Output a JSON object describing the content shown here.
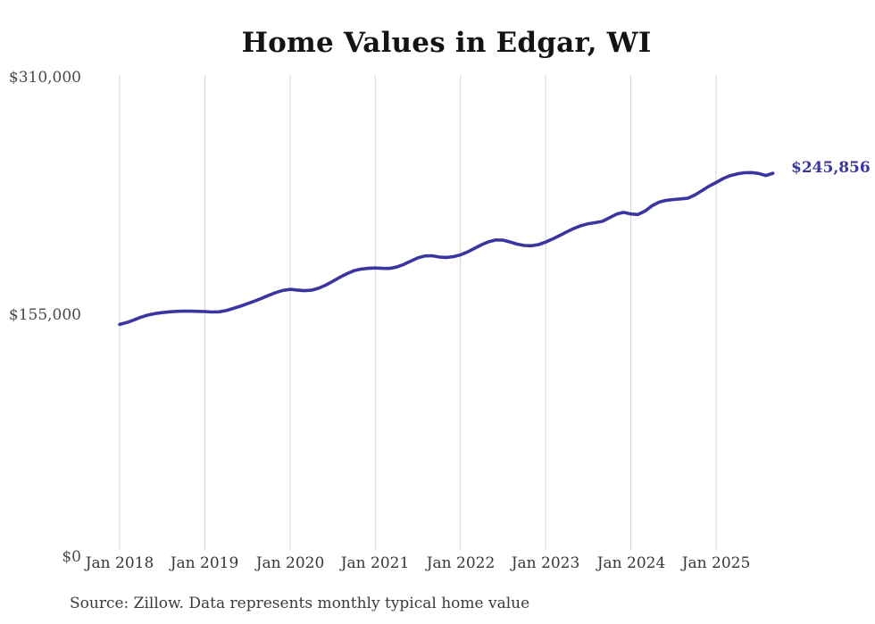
{
  "title": "Home Values in Edgar, WI",
  "end_label": "$245,856",
  "source_note": "Source: Zillow. Data represents monthly typical home value",
  "y_axis_labels": [
    "$310,000",
    "$155,000",
    "$0"
  ],
  "x_axis_labels": [
    "Jan 2018",
    "Jan 2019",
    "Jan 2020",
    "Jan 2021",
    "Jan 2022",
    "Jan 2023",
    "Jan 2024",
    "Jan 2025"
  ],
  "colors": {
    "line": "#3b35a0",
    "gridline": "#d4d4d4",
    "title": "#141414",
    "y_axis_text": "#4a4a4a",
    "x_axis_text": "#383838",
    "source_text": "#3b3b3b"
  },
  "chart_data": {
    "type": "line",
    "title": "Home Values in Edgar, WI",
    "frequency": "monthly",
    "x_start": "2018-01",
    "x_end": "2025-09",
    "ylim": [
      0,
      310000
    ],
    "y_ticks": [
      0,
      155000,
      310000
    ],
    "x_tick_labels": [
      "Jan 2018",
      "Jan 2019",
      "Jan 2020",
      "Jan 2021",
      "Jan 2022",
      "Jan 2023",
      "Jan 2024",
      "Jan 2025"
    ],
    "grid": "vertical-year-gridlines",
    "legend": "none",
    "last_value": 245856,
    "last_point_label": "$245,856",
    "x": [
      "2018-01",
      "2018-02",
      "2018-03",
      "2018-04",
      "2018-05",
      "2018-06",
      "2018-07",
      "2018-08",
      "2018-09",
      "2018-10",
      "2018-11",
      "2018-12",
      "2019-01",
      "2019-02",
      "2019-03",
      "2019-04",
      "2019-05",
      "2019-06",
      "2019-07",
      "2019-08",
      "2019-09",
      "2019-10",
      "2019-11",
      "2019-12",
      "2020-01",
      "2020-02",
      "2020-03",
      "2020-04",
      "2020-05",
      "2020-06",
      "2020-07",
      "2020-08",
      "2020-09",
      "2020-10",
      "2020-11",
      "2020-12",
      "2021-01",
      "2021-02",
      "2021-03",
      "2021-04",
      "2021-05",
      "2021-06",
      "2021-07",
      "2021-08",
      "2021-09",
      "2021-10",
      "2021-11",
      "2021-12",
      "2022-01",
      "2022-02",
      "2022-03",
      "2022-04",
      "2022-05",
      "2022-06",
      "2022-07",
      "2022-08",
      "2022-09",
      "2022-10",
      "2022-11",
      "2022-12",
      "2023-01",
      "2023-02",
      "2023-03",
      "2023-04",
      "2023-05",
      "2023-06",
      "2023-07",
      "2023-08",
      "2023-09",
      "2023-10",
      "2023-11",
      "2023-12",
      "2024-01",
      "2024-02",
      "2024-03",
      "2024-04",
      "2024-05",
      "2024-06",
      "2024-07",
      "2024-08",
      "2024-09",
      "2024-10",
      "2024-11",
      "2024-12",
      "2025-01",
      "2025-02",
      "2025-03",
      "2025-04",
      "2025-05",
      "2025-06",
      "2025-07",
      "2025-08",
      "2025-09"
    ],
    "y": [
      147200,
      148400,
      150100,
      151900,
      153300,
      154300,
      154900,
      155400,
      155700,
      155900,
      155800,
      155700,
      155600,
      155300,
      155400,
      156200,
      157600,
      159100,
      160700,
      162400,
      164200,
      166200,
      168000,
      169400,
      170100,
      169600,
      169200,
      169500,
      170800,
      172800,
      175300,
      177900,
      180300,
      182200,
      183300,
      183800,
      184000,
      183800,
      183700,
      184600,
      186300,
      188500,
      190600,
      191900,
      192000,
      191200,
      190900,
      191400,
      192600,
      194500,
      196900,
      199300,
      201200,
      202300,
      202200,
      201000,
      199600,
      198700,
      198500,
      199300,
      200900,
      203000,
      205300,
      207700,
      209900,
      211700,
      212900,
      213600,
      214500,
      216800,
      219200,
      220300,
      219300,
      218900,
      221200,
      224700,
      227000,
      228200,
      228700,
      229100,
      229500,
      231600,
      234500,
      237400,
      239800,
      242400,
      244300,
      245500,
      246200,
      246300,
      245700,
      244400,
      245856
    ]
  }
}
